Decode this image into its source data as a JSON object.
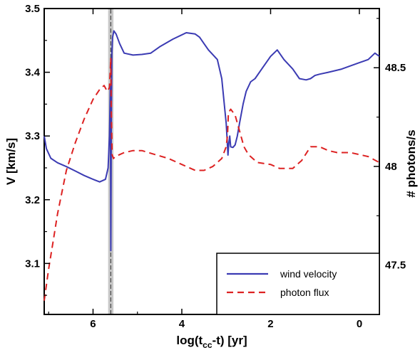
{
  "chart_data": {
    "type": "line",
    "xlabel": "log(tₑₑ-t) [yr]",
    "xlabel_main": "log(t",
    "xlabel_sub": "cc",
    "xlabel_rest": "-t) [yr]",
    "ylabel_left": "V [km/s]",
    "ylabel_right": "# photons/s",
    "x_axis_reversed": true,
    "xlim": [
      7.1,
      -0.45
    ],
    "ylim_left": [
      3.02,
      3.5
    ],
    "ylim_right": [
      47.25,
      48.8
    ],
    "x_ticks": [
      6,
      4,
      2,
      0
    ],
    "y_left_ticks": [
      "3.1",
      "3.2",
      "3.3",
      "3.4",
      "3.5"
    ],
    "y_right_ticks": [
      "47.5",
      "48",
      "48.5"
    ],
    "legend_position": "bottom-right",
    "highlight_band": {
      "x_center": 5.6,
      "width": 0.12,
      "color": "#c8c8c8"
    },
    "series": [
      {
        "name": "wind velocity",
        "axis": "left",
        "color": "#3b3bb3",
        "style": "solid",
        "x": [
          7.1,
          7.05,
          6.95,
          6.8,
          6.6,
          6.4,
          6.2,
          6.0,
          5.85,
          5.72,
          5.66,
          5.63,
          5.61,
          5.6,
          5.59,
          5.575,
          5.56,
          5.53,
          5.48,
          5.4,
          5.3,
          5.1,
          4.9,
          4.7,
          4.5,
          4.2,
          3.9,
          3.7,
          3.6,
          3.5,
          3.4,
          3.2,
          3.1,
          3.03,
          3.0,
          2.98,
          2.96,
          2.95,
          2.94,
          2.92,
          2.9,
          2.85,
          2.8,
          2.75,
          2.7,
          2.62,
          2.55,
          2.45,
          2.35,
          2.2,
          2.0,
          1.85,
          1.7,
          1.5,
          1.35,
          1.2,
          1.1,
          1.0,
          0.9,
          0.7,
          0.4,
          0.2,
          0.0,
          -0.2,
          -0.35,
          -0.45
        ],
        "y": [
          3.3,
          3.28,
          3.265,
          3.258,
          3.252,
          3.245,
          3.238,
          3.232,
          3.228,
          3.232,
          3.25,
          3.3,
          3.38,
          3.12,
          3.3,
          3.43,
          3.455,
          3.465,
          3.46,
          3.445,
          3.43,
          3.427,
          3.428,
          3.43,
          3.44,
          3.452,
          3.462,
          3.46,
          3.455,
          3.445,
          3.435,
          3.42,
          3.39,
          3.34,
          3.32,
          3.295,
          3.27,
          3.28,
          3.29,
          3.3,
          3.283,
          3.282,
          3.286,
          3.3,
          3.32,
          3.35,
          3.37,
          3.385,
          3.39,
          3.405,
          3.425,
          3.435,
          3.42,
          3.405,
          3.39,
          3.388,
          3.39,
          3.395,
          3.397,
          3.4,
          3.405,
          3.41,
          3.415,
          3.42,
          3.43,
          3.425
        ]
      },
      {
        "name": "photon flux",
        "axis": "right",
        "color": "#dd2222",
        "style": "dashed",
        "x": [
          7.1,
          7.0,
          6.9,
          6.8,
          6.6,
          6.4,
          6.2,
          6.0,
          5.85,
          5.75,
          5.68,
          5.63,
          5.61,
          5.6,
          5.59,
          5.57,
          5.54,
          5.5,
          5.4,
          5.3,
          5.1,
          4.9,
          4.6,
          4.3,
          4.0,
          3.7,
          3.5,
          3.3,
          3.1,
          3.0,
          2.97,
          2.95,
          2.9,
          2.8,
          2.7,
          2.6,
          2.5,
          2.3,
          2.0,
          1.8,
          1.5,
          1.3,
          1.1,
          0.9,
          0.7,
          0.5,
          0.2,
          0.0,
          -0.2,
          -0.45
        ],
        "y": [
          47.32,
          47.48,
          47.62,
          47.76,
          47.98,
          48.12,
          48.24,
          48.34,
          48.39,
          48.41,
          48.38,
          48.4,
          48.5,
          48.55,
          48.3,
          48.06,
          48.04,
          48.05,
          48.06,
          48.07,
          48.08,
          48.08,
          48.06,
          48.04,
          48.01,
          47.98,
          47.98,
          48.0,
          48.04,
          48.1,
          48.16,
          48.27,
          48.29,
          48.26,
          48.18,
          48.1,
          48.06,
          48.02,
          48.01,
          47.99,
          47.99,
          48.03,
          48.1,
          48.1,
          48.08,
          48.07,
          48.07,
          48.06,
          48.05,
          48.02
        ]
      }
    ]
  },
  "legend": {
    "items": [
      {
        "label": "wind velocity",
        "color": "#3b3bb3",
        "style": "solid"
      },
      {
        "label": "photon flux",
        "color": "#dd2222",
        "style": "dashed"
      }
    ]
  }
}
